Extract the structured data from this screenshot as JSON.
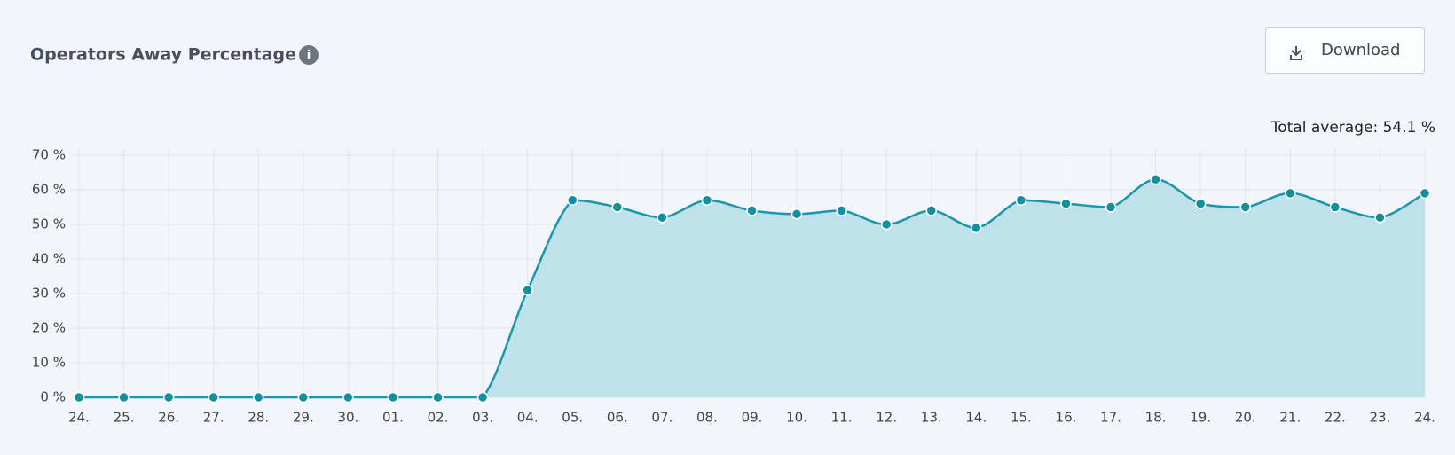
{
  "header": {
    "title": "Operators Away Percentage",
    "info_icon": "i",
    "download_button": "Download"
  },
  "chart_data": {
    "type": "area",
    "annotation": "Total average: 54.1 %",
    "categories": [
      "24.",
      "25.",
      "26.",
      "27.",
      "28.",
      "29.",
      "30.",
      "01.",
      "02.",
      "03.",
      "04.",
      "05.",
      "06.",
      "07.",
      "08.",
      "09.",
      "10.",
      "11.",
      "12.",
      "13.",
      "14.",
      "15.",
      "16.",
      "17.",
      "18.",
      "19.",
      "20.",
      "21.",
      "22.",
      "23.",
      "24."
    ],
    "series": [
      {
        "name": "Operators Away Percentage",
        "color": "#1a97a8",
        "values": [
          0,
          0,
          0,
          0,
          0,
          0,
          0,
          0,
          0,
          0,
          31,
          57,
          55,
          52,
          57,
          54,
          53,
          54,
          50,
          54,
          49,
          57,
          56,
          55,
          63,
          56,
          55,
          59,
          55,
          52,
          59
        ]
      }
    ],
    "ylim": [
      0,
      70
    ],
    "yticks": [
      {
        "value": 0,
        "label": "0 %"
      },
      {
        "value": 10,
        "label": "10 %"
      },
      {
        "value": 20,
        "label": "20 %"
      },
      {
        "value": 30,
        "label": "30 %"
      },
      {
        "value": 40,
        "label": "40 %"
      },
      {
        "value": 50,
        "label": "50 %"
      },
      {
        "value": 60,
        "label": "60 %"
      },
      {
        "value": 70,
        "label": "70 %"
      }
    ],
    "grid": true
  }
}
